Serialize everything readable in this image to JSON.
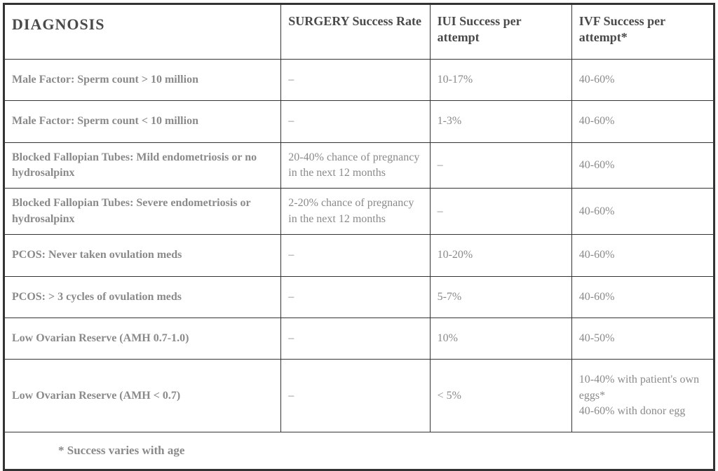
{
  "table": {
    "headers": {
      "diagnosis": "DIAGNOSIS",
      "surgery": "SURGERY Success Rate",
      "iui": "IUI Success per attempt",
      "ivf": "IVF Success per attempt*"
    },
    "rows": [
      {
        "diagnosis": "Male Factor: Sperm count > 10 million",
        "surgery": "–",
        "iui": "10-17%",
        "ivf": "40-60%",
        "compact": false
      },
      {
        "diagnosis": "Male Factor: Sperm count < 10 million",
        "surgery": "–",
        "iui": "1-3%",
        "ivf": "40-60%",
        "compact": false
      },
      {
        "diagnosis": "Blocked Fallopian Tubes: Mild endometriosis or no hydrosalpinx",
        "surgery": "20-40% chance of pregnancy in the next 12 months",
        "iui": "–",
        "ivf": "40-60%",
        "compact": true
      },
      {
        "diagnosis": "Blocked Fallopian Tubes: Severe endometriosis or hydrosalpinx",
        "surgery": "2-20% chance of pregnancy in the next 12 months",
        "iui": "–",
        "ivf": "40-60%",
        "compact": true
      },
      {
        "diagnosis": "PCOS: Never taken ovulation meds",
        "surgery": "–",
        "iui": "10-20%",
        "ivf": "40-60%",
        "compact": false
      },
      {
        "diagnosis": "PCOS: > 3 cycles of ovulation meds",
        "surgery": "–",
        "iui": "5-7%",
        "ivf": "40-60%",
        "compact": false
      },
      {
        "diagnosis": "Low Ovarian Reserve (AMH 0.7-1.0)",
        "surgery": "–",
        "iui": "10%",
        "ivf": "40-50%",
        "compact": false
      },
      {
        "diagnosis": "Low Ovarian Reserve (AMH < 0.7)",
        "surgery": "–",
        "iui": "< 5%",
        "ivf": "10-40% with patient's own eggs*\n40-60% with donor egg",
        "compact": false
      }
    ],
    "footnote": "* Success varies with age"
  },
  "styling": {
    "border_color": "#333333",
    "header_text_color": "#4a4a4a",
    "body_text_color": "#8a8a8a",
    "background_color": "#ffffff",
    "header_fontsize": 18,
    "diagnosis_header_fontsize": 22,
    "body_fontsize": 16,
    "footnote_fontsize": 17,
    "column_widths": {
      "diagnosis": "39%",
      "surgery": "21%",
      "iui": "20%",
      "ivf": "20%"
    }
  }
}
